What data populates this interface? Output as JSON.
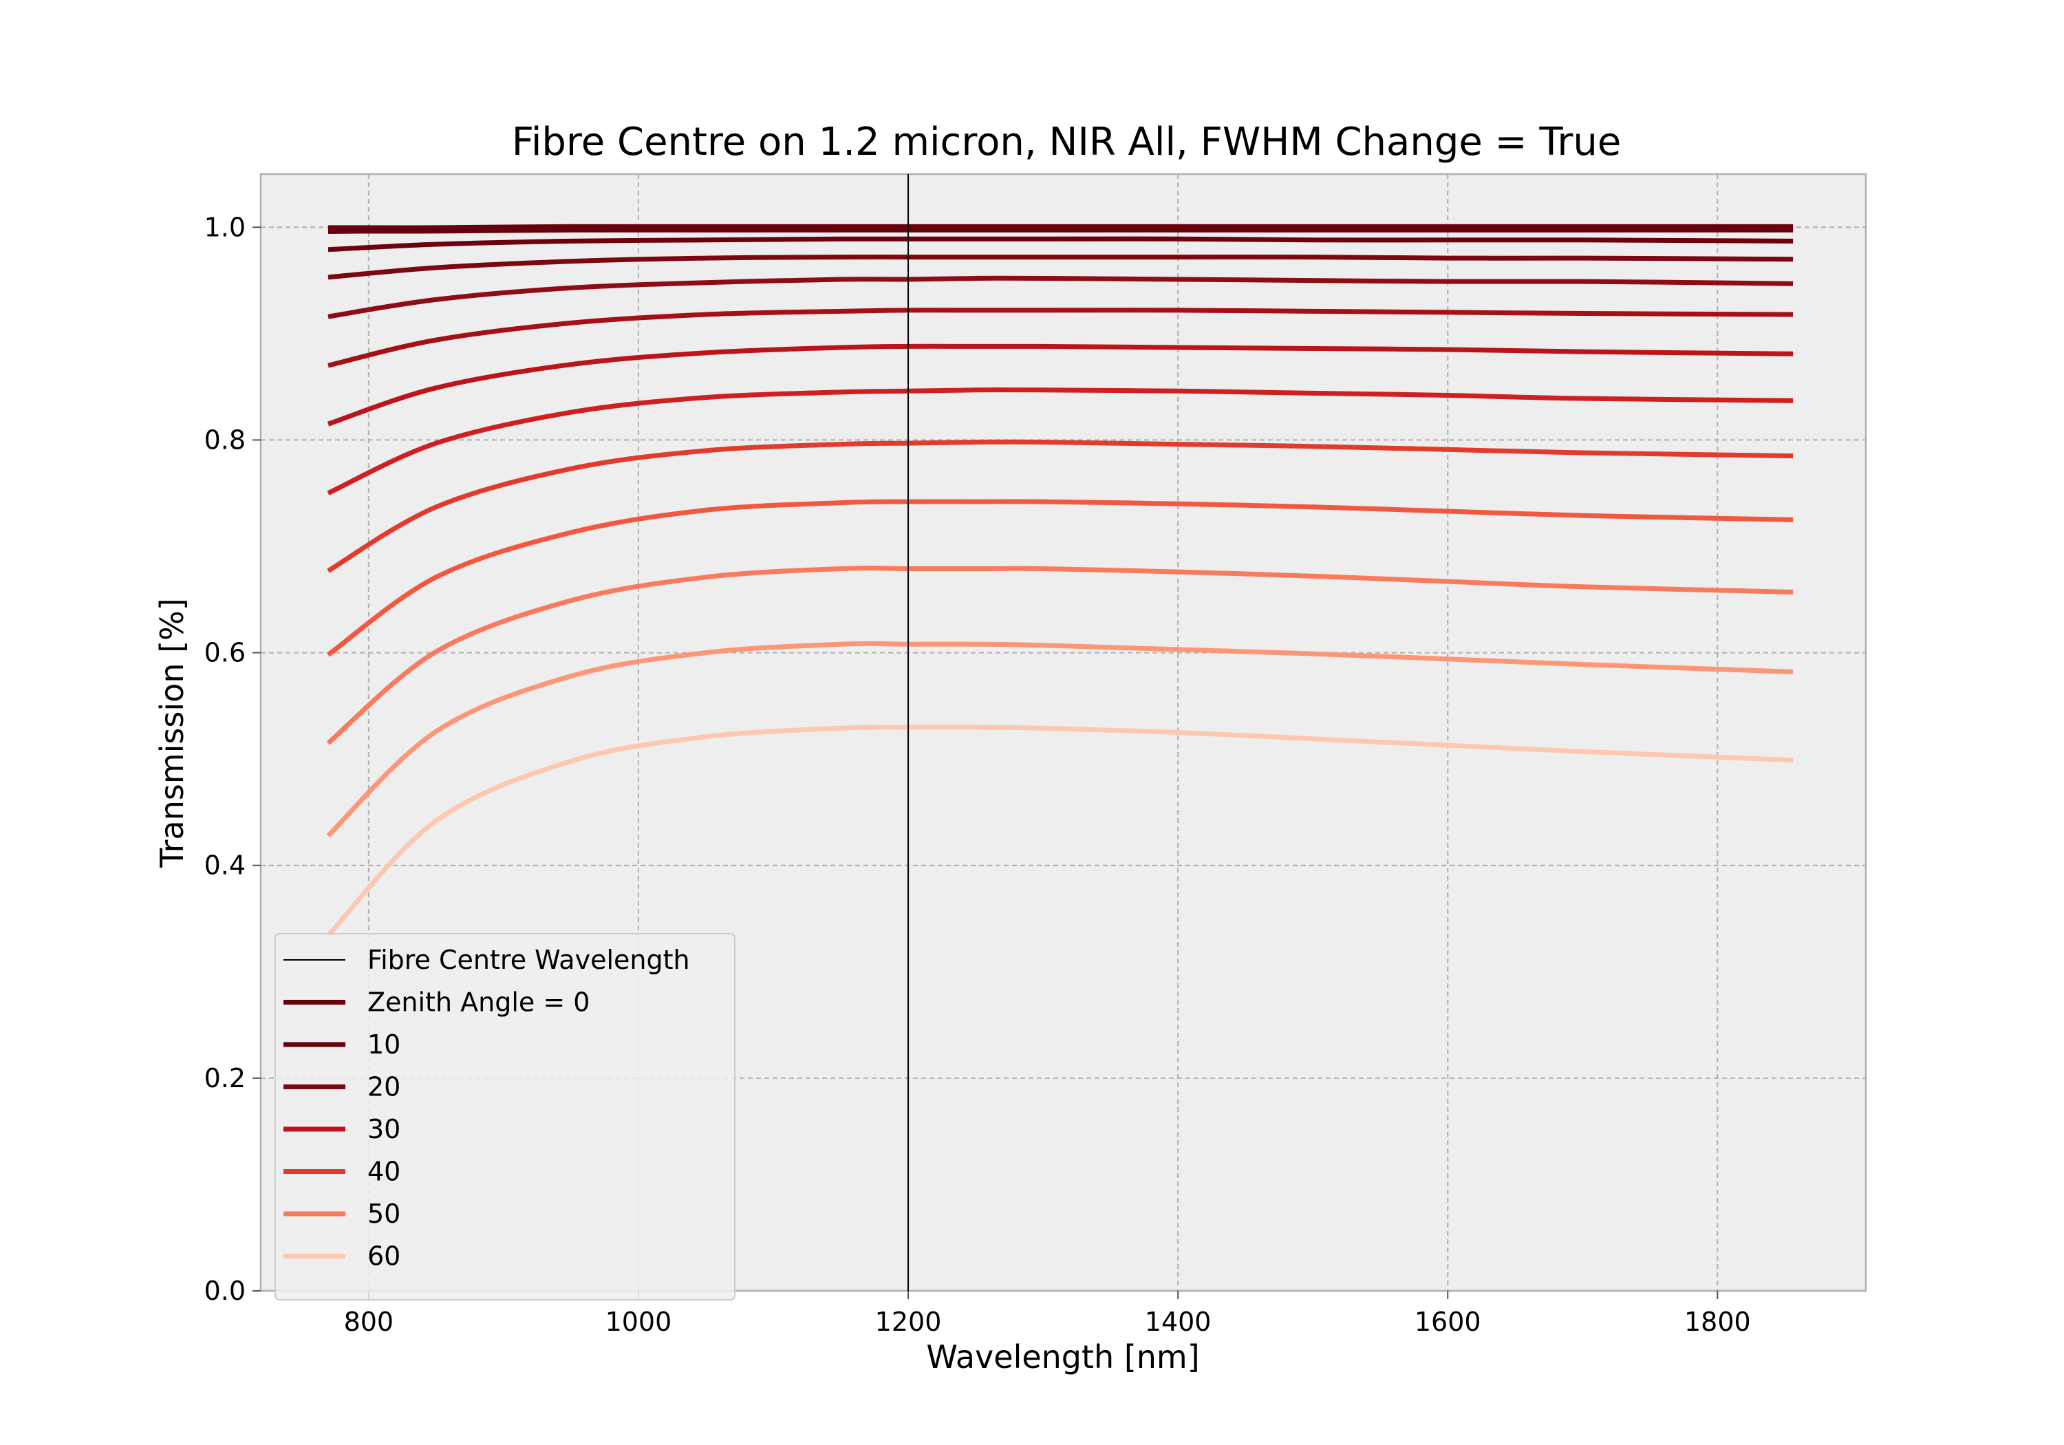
{
  "chart_data": {
    "type": "line",
    "title": "Fibre Centre on 1.2 micron, NIR All, FWHM Change = True",
    "xlabel": "Wavelength [nm]",
    "ylabel": "Transmission [%]",
    "xlim": [
      720,
      1910
    ],
    "ylim": [
      0.0,
      1.05
    ],
    "xticks": [
      800,
      1000,
      1200,
      1400,
      1600,
      1800
    ],
    "xtick_labels": [
      "800",
      "1000",
      "1200",
      "1400",
      "1600",
      "1800"
    ],
    "yticks": [
      0.0,
      0.2,
      0.4,
      0.6,
      0.8,
      1.0
    ],
    "ytick_labels": [
      "0.0",
      "0.2",
      "0.4",
      "0.6",
      "0.8",
      "1.0"
    ],
    "grid": true,
    "legend_position": "lower-left",
    "vline": {
      "x": 1200,
      "name": "Fibre Centre Wavelength",
      "color": "#000000"
    },
    "x": [
      770,
      850,
      950,
      1050,
      1150,
      1200,
      1250,
      1300,
      1400,
      1500,
      1600,
      1700,
      1856
    ],
    "series": [
      {
        "name": "Zenith Angle =  0",
        "color": "#67000d",
        "width": 12,
        "values": [
          0.998,
          0.998,
          0.999,
          0.999,
          0.999,
          0.999,
          0.999,
          0.999,
          0.999,
          0.999,
          0.999,
          0.999,
          0.999
        ]
      },
      {
        "name": "10",
        "color": "#67000d",
        "width": 7,
        "values": [
          0.996,
          0.997,
          0.998,
          0.998,
          0.998,
          0.998,
          0.998,
          0.998,
          0.998,
          0.998,
          0.998,
          0.998,
          0.998
        ]
      },
      {
        "name": "",
        "color": "#6d020f",
        "width": 7,
        "values": [
          0.979,
          0.984,
          0.987,
          0.988,
          0.989,
          0.989,
          0.989,
          0.989,
          0.989,
          0.988,
          0.988,
          0.988,
          0.987
        ]
      },
      {
        "name": "20",
        "color": "#7a0711",
        "width": 7,
        "values": [
          0.953,
          0.962,
          0.968,
          0.971,
          0.972,
          0.972,
          0.972,
          0.972,
          0.972,
          0.972,
          0.971,
          0.971,
          0.97
        ]
      },
      {
        "name": "",
        "color": "#8e0c15",
        "width": 7,
        "values": [
          0.916,
          0.932,
          0.943,
          0.948,
          0.951,
          0.951,
          0.952,
          0.952,
          0.951,
          0.95,
          0.949,
          0.949,
          0.947
        ]
      },
      {
        "name": "30",
        "color": "#a50f15",
        "width": 7,
        "values": [
          0.87,
          0.894,
          0.91,
          0.918,
          0.921,
          0.922,
          0.922,
          0.922,
          0.922,
          0.921,
          0.92,
          0.919,
          0.918
        ]
      },
      {
        "name": "",
        "color": "#bb1419",
        "width": 7,
        "values": [
          0.815,
          0.849,
          0.871,
          0.882,
          0.887,
          0.888,
          0.888,
          0.888,
          0.887,
          0.886,
          0.885,
          0.883,
          0.881
        ]
      },
      {
        "name": "40",
        "color": "#cf1f20",
        "width": 7,
        "values": [
          0.75,
          0.797,
          0.826,
          0.84,
          0.845,
          0.846,
          0.847,
          0.847,
          0.846,
          0.844,
          0.842,
          0.839,
          0.837
        ]
      },
      {
        "name": "",
        "color": "#e23b2e",
        "width": 7,
        "values": [
          0.677,
          0.737,
          0.773,
          0.79,
          0.796,
          0.797,
          0.798,
          0.798,
          0.796,
          0.794,
          0.791,
          0.788,
          0.785
        ]
      },
      {
        "name": "50",
        "color": "#f2583f",
        "width": 7,
        "values": [
          0.598,
          0.671,
          0.713,
          0.734,
          0.741,
          0.742,
          0.742,
          0.742,
          0.74,
          0.737,
          0.733,
          0.729,
          0.725
        ]
      },
      {
        "name": "",
        "color": "#f97a5d",
        "width": 7,
        "values": [
          0.515,
          0.601,
          0.649,
          0.671,
          0.679,
          0.679,
          0.679,
          0.679,
          0.676,
          0.672,
          0.667,
          0.662,
          0.657
        ]
      },
      {
        "name": "60",
        "color": "#fc9676",
        "width": 7,
        "values": [
          0.428,
          0.526,
          0.578,
          0.6,
          0.608,
          0.608,
          0.608,
          0.607,
          0.603,
          0.599,
          0.594,
          0.589,
          0.582
        ]
      },
      {
        "name": "",
        "color": "#fdc7b0",
        "width": 7,
        "values": [
          0.334,
          0.442,
          0.498,
          0.521,
          0.529,
          0.53,
          0.53,
          0.529,
          0.525,
          0.519,
          0.513,
          0.507,
          0.499
        ]
      }
    ],
    "legend": [
      {
        "label": "Fibre Centre Wavelength",
        "color": "#000000",
        "width": 2
      },
      {
        "label": "Zenith Angle =  0",
        "color": "#67000d",
        "width": 7
      },
      {
        "label": "10",
        "color": "#67000d",
        "width": 7
      },
      {
        "label": "20",
        "color": "#7a0711",
        "width": 7
      },
      {
        "label": "30",
        "color": "#bb1419",
        "width": 7
      },
      {
        "label": "40",
        "color": "#e23b2e",
        "width": 7
      },
      {
        "label": "50",
        "color": "#f97a5d",
        "width": 7
      },
      {
        "label": "60",
        "color": "#fdc7b0",
        "width": 7
      }
    ]
  }
}
